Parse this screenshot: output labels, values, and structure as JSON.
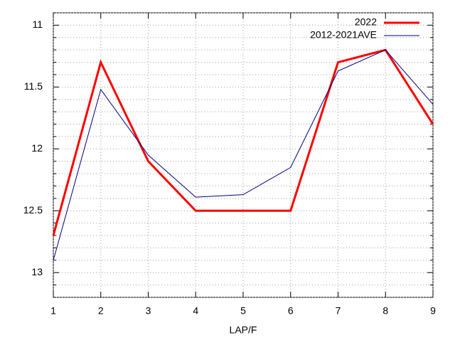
{
  "chart_data": {
    "type": "line",
    "xlabel": "LAP/F",
    "x": [
      1,
      2,
      3,
      4,
      5,
      6,
      7,
      8,
      9
    ],
    "series": [
      {
        "name": "2022",
        "color": "#ff0000",
        "values": [
          12.7,
          11.3,
          12.1,
          12.5,
          12.5,
          12.5,
          11.3,
          11.2,
          11.8
        ]
      },
      {
        "name": "2012-2021AVE",
        "color": "#000080",
        "values": [
          12.9,
          11.52,
          12.05,
          12.39,
          12.37,
          12.15,
          11.37,
          11.2,
          11.64
        ]
      }
    ],
    "xlim": [
      1,
      9
    ],
    "xticks": [
      1,
      2,
      3,
      4,
      5,
      6,
      7,
      8,
      9
    ],
    "ylim": [
      10.9,
      13.2
    ],
    "yticks": [
      11,
      11.5,
      12,
      12.5,
      13
    ],
    "yminorticks": [
      10.9,
      11.1,
      11.2,
      11.3,
      11.4,
      11.6,
      11.7,
      11.8,
      11.9,
      12.1,
      12.2,
      12.3,
      12.4,
      12.6,
      12.7,
      12.8,
      12.9,
      13.1,
      13.2
    ],
    "y_reversed": true,
    "grid": true,
    "legend": "upper right"
  }
}
